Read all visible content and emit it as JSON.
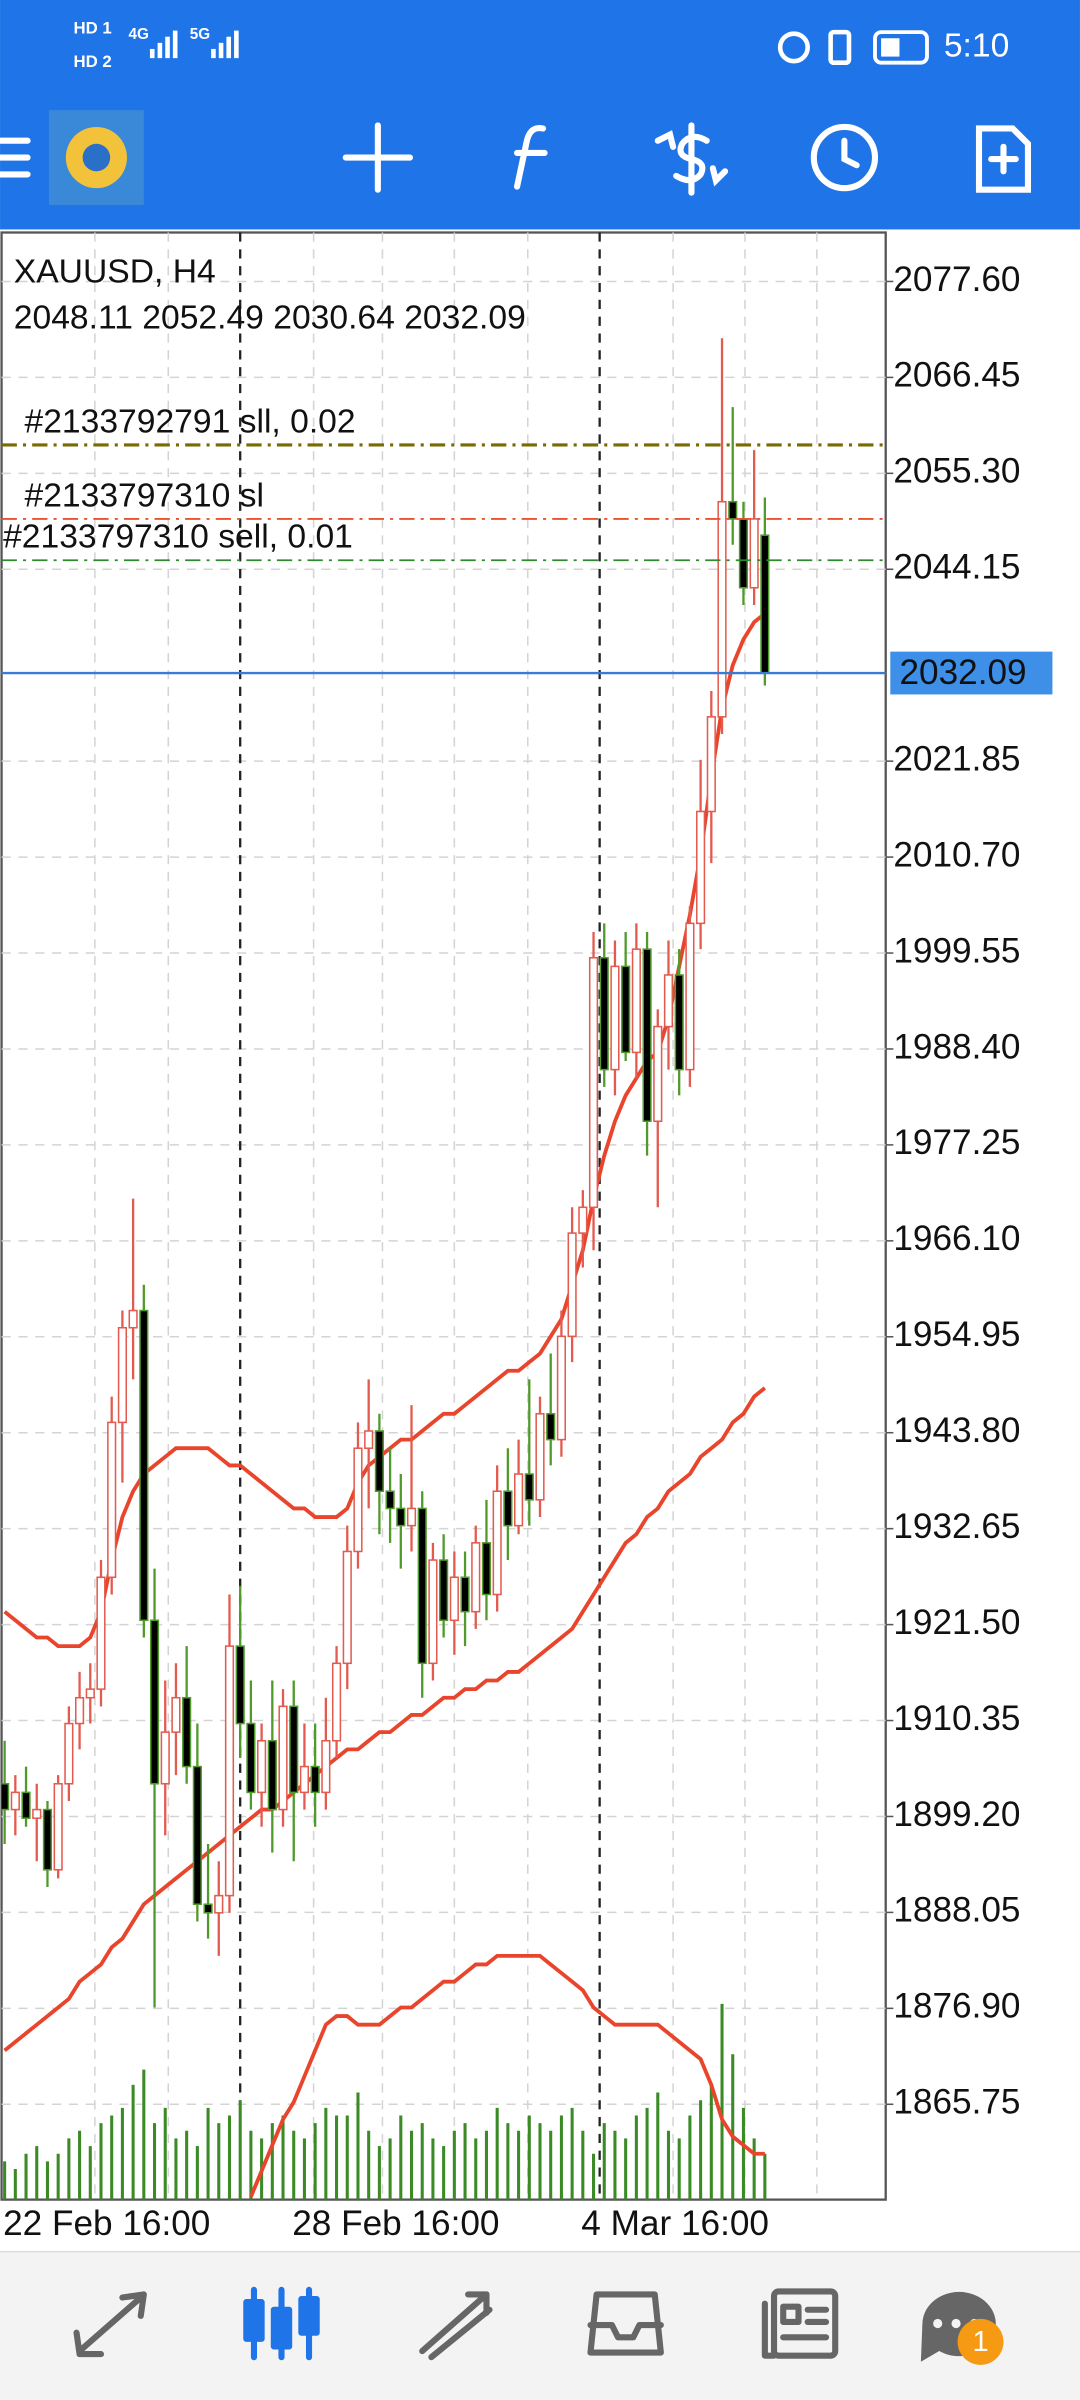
{
  "status": {
    "time": "5:10",
    "labels": [
      "HD 1",
      "HD 2",
      "4G",
      "5G"
    ]
  },
  "badge": "1",
  "chart_data": {
    "type": "candlestick",
    "title": "XAUUSD, H4",
    "categories": [
      "22 Feb 16:00",
      null,
      null,
      null,
      null,
      null,
      null,
      null,
      null,
      null,
      null,
      null,
      null,
      null,
      null,
      null,
      null,
      null,
      null,
      null,
      null,
      null,
      null,
      null,
      null,
      null,
      null,
      "28 Feb 16:00",
      null,
      null,
      null,
      null,
      null,
      null,
      null,
      null,
      null,
      null,
      null,
      null,
      null,
      null,
      null,
      null,
      null,
      null,
      null,
      null,
      null,
      null,
      null,
      null,
      null,
      null,
      "4 Mar 16:00",
      null,
      null,
      null,
      null,
      null,
      null,
      null,
      null,
      null,
      null,
      null,
      null,
      null,
      null,
      null,
      null,
      null
    ],
    "open": [
      1903,
      1900,
      1902,
      1899,
      1900,
      1893,
      1903,
      1910,
      1913,
      1914,
      1927,
      1945,
      1956,
      1958,
      1922,
      1903,
      1909,
      1913,
      1905,
      1889,
      1888,
      1890,
      1919,
      1910,
      1902,
      1908,
      1900,
      1912,
      1902,
      1905,
      1902,
      1908,
      1917,
      1930,
      1942,
      1944,
      1937,
      1935,
      1933,
      1935,
      1917,
      1929,
      1922,
      1927,
      1923,
      1931,
      1925,
      1937,
      1933,
      1939,
      1936,
      1946,
      1943,
      1955,
      1967,
      1970,
      1999,
      1986,
      1998,
      1988,
      2000,
      1980,
      1991,
      1997,
      1986,
      2003,
      2016,
      2027,
      2052,
      2050,
      2042,
      2048.11
    ],
    "high": [
      1908,
      1904,
      1905,
      1903,
      1901,
      1904,
      1912,
      1916,
      1917,
      1929,
      1948,
      1958,
      1971,
      1961,
      1928,
      1915,
      1917,
      1919,
      1910,
      1896,
      1894,
      1925,
      1926,
      1915,
      1910,
      1915,
      1914,
      1915,
      1910,
      1910,
      1913,
      1919,
      1933,
      1945,
      1950,
      1946,
      1942,
      1939,
      1947,
      1937,
      1931,
      1932,
      1930,
      1930,
      1933,
      1936,
      1940,
      1942,
      1943,
      1950,
      1948,
      1953,
      1958,
      1970,
      1972,
      2002,
      2003,
      2001,
      2002,
      2003,
      2002,
      1993,
      2001,
      2000,
      2005,
      2022,
      2030,
      2071,
      2063,
      2052,
      2058,
      2052.49
    ],
    "low": [
      1896,
      1897,
      1898,
      1894,
      1891,
      1892,
      1901,
      1907,
      1910,
      1912,
      1925,
      1938,
      1950,
      1920,
      1877,
      1897,
      1904,
      1903,
      1887,
      1885,
      1883,
      1888,
      1906,
      1900,
      1898,
      1895,
      1898,
      1894,
      1900,
      1898,
      1900,
      1906,
      1914,
      1928,
      1935,
      1932,
      1931,
      1928,
      1930,
      1913,
      1915,
      1920,
      1918,
      1919,
      1921,
      1922,
      1923,
      1929,
      1932,
      1933,
      1934,
      1940,
      1941,
      1952,
      1963,
      1965,
      1984,
      1983,
      1987,
      1985,
      1976,
      1970,
      1986,
      1983,
      1984,
      2000,
      2010,
      2025,
      2047,
      2040,
      2040,
      2030.64
    ],
    "close": [
      1900,
      1902,
      1899,
      1900,
      1893,
      1903,
      1910,
      1913,
      1914,
      1927,
      1945,
      1956,
      1958,
      1922,
      1903,
      1909,
      1913,
      1905,
      1889,
      1888,
      1890,
      1919,
      1910,
      1902,
      1908,
      1900,
      1912,
      1902,
      1905,
      1902,
      1908,
      1917,
      1930,
      1942,
      1944,
      1937,
      1935,
      1933,
      1935,
      1917,
      1929,
      1922,
      1927,
      1923,
      1931,
      1925,
      1937,
      1933,
      1939,
      1936,
      1946,
      1943,
      1955,
      1967,
      1970,
      1999,
      1986,
      1998,
      1988,
      2000,
      1980,
      1991,
      1997,
      1986,
      2003,
      2016,
      2027,
      2052,
      2050,
      2042,
      2050,
      2032.09
    ],
    "volume": [
      25,
      20,
      30,
      35,
      25,
      30,
      40,
      45,
      35,
      50,
      55,
      60,
      75,
      85,
      50,
      60,
      40,
      45,
      35,
      60,
      50,
      55,
      65,
      45,
      40,
      50,
      55,
      45,
      40,
      50,
      60,
      55,
      55,
      70,
      45,
      35,
      40,
      55,
      45,
      50,
      40,
      35,
      45,
      50,
      40,
      45,
      60,
      50,
      45,
      55,
      50,
      45,
      55,
      60,
      45,
      30,
      50,
      45,
      40,
      55,
      60,
      70,
      45,
      40,
      55,
      65,
      75,
      128,
      95,
      60,
      40,
      30
    ],
    "bands": {
      "color": "#e8452c",
      "upper": [
        1923,
        1922,
        1921,
        1920,
        1920,
        1919,
        1919,
        1919,
        1920,
        1923,
        1929,
        1934,
        1937,
        1939,
        1940,
        1941,
        1942,
        1942,
        1942,
        1942,
        1941,
        1940,
        1940,
        1939,
        1938,
        1937,
        1936,
        1935,
        1935,
        1934,
        1934,
        1934,
        1935,
        1938,
        1940,
        1941,
        1942,
        1943,
        1943,
        1944,
        1945,
        1946,
        1946,
        1947,
        1948,
        1949,
        1950,
        1951,
        1951,
        1952,
        1953,
        1955,
        1957,
        1961,
        1965,
        1971,
        1976,
        1980,
        1983,
        1985,
        1987,
        1988,
        1992,
        1998,
        2004,
        2011,
        2020,
        2028,
        2033,
        2036,
        2038,
        2039
      ],
      "middle": [
        1872,
        1873,
        1874,
        1875,
        1876,
        1877,
        1878,
        1880,
        1881,
        1882,
        1884,
        1885,
        1887,
        1889,
        1890,
        1891,
        1892,
        1893,
        1894,
        1895,
        1896,
        1897,
        1898,
        1899,
        1900,
        1900,
        1901,
        1902,
        1903,
        1904,
        1905,
        1906,
        1907,
        1907,
        1908,
        1909,
        1909,
        1910,
        1911,
        1911,
        1912,
        1913,
        1913,
        1914,
        1914,
        1915,
        1915,
        1916,
        1916,
        1917,
        1918,
        1919,
        1920,
        1921,
        1923,
        1925,
        1927,
        1929,
        1931,
        1932,
        1934,
        1935,
        1937,
        1938,
        1939,
        1941,
        1942,
        1943,
        1945,
        1946,
        1948,
        1949
      ],
      "lower": [
        null,
        null,
        null,
        null,
        null,
        null,
        null,
        null,
        null,
        null,
        null,
        null,
        null,
        null,
        null,
        null,
        null,
        null,
        null,
        null,
        null,
        null,
        null,
        1855,
        1858,
        1861,
        1864,
        1866,
        1869,
        1872,
        1875,
        1876,
        1876,
        1875,
        1875,
        1875,
        1876,
        1877,
        1877,
        1878,
        1879,
        1880,
        1880,
        1881,
        1882,
        1882,
        1883,
        1883,
        1883,
        1883,
        1883,
        1882,
        1881,
        1880,
        1879,
        1877,
        1876,
        1875,
        1875,
        1875,
        1875,
        1875,
        1874,
        1873,
        1872,
        1871,
        1868,
        1864,
        1862,
        1861,
        1860,
        1860
      ]
    },
    "up_color": "#e35a4f",
    "down_color": "#4f9a2a",
    "volume_color": "#3a8a25",
    "price_line_color": "#3a7bd5",
    "orders": [
      {
        "label": "#2133792791 sll, 0.02",
        "price": 2058.6,
        "color": "#7a6a00"
      },
      {
        "label": "#2133797310 sl",
        "price": 2050.0,
        "color": "#e8542f"
      },
      {
        "label": "#2133797310 sell, 0.01",
        "price": 2045.2,
        "color": "#2f8a2f"
      }
    ],
    "ylim": [
      1854.67,
      2083.29
    ],
    "yticks": [
      {
        "value": 2077.6,
        "label": "2077.60"
      },
      {
        "value": 2066.45,
        "label": "2066.45"
      },
      {
        "value": 2055.3,
        "label": "2055.30"
      },
      {
        "value": 2044.15,
        "label": "2044.15"
      },
      {
        "value": 2021.85,
        "label": "2021.85"
      },
      {
        "value": 2010.7,
        "label": "2010.70"
      },
      {
        "value": 1999.55,
        "label": "1999.55"
      },
      {
        "value": 1988.4,
        "label": "1988.40"
      },
      {
        "value": 1977.25,
        "label": "1977.25"
      },
      {
        "value": 1966.1,
        "label": "1966.10"
      },
      {
        "value": 1954.95,
        "label": "1954.95"
      },
      {
        "value": 1943.8,
        "label": "1943.80"
      },
      {
        "value": 1932.65,
        "label": "1932.65"
      },
      {
        "value": 1921.5,
        "label": "1921.50"
      },
      {
        "value": 1910.35,
        "label": "1910.35"
      },
      {
        "value": 1899.2,
        "label": "1899.20"
      },
      {
        "value": 1888.05,
        "label": "1888.05"
      },
      {
        "value": 1876.9,
        "label": "1876.90"
      },
      {
        "value": 1865.75,
        "label": "1865.75"
      }
    ],
    "grid": true
  }
}
